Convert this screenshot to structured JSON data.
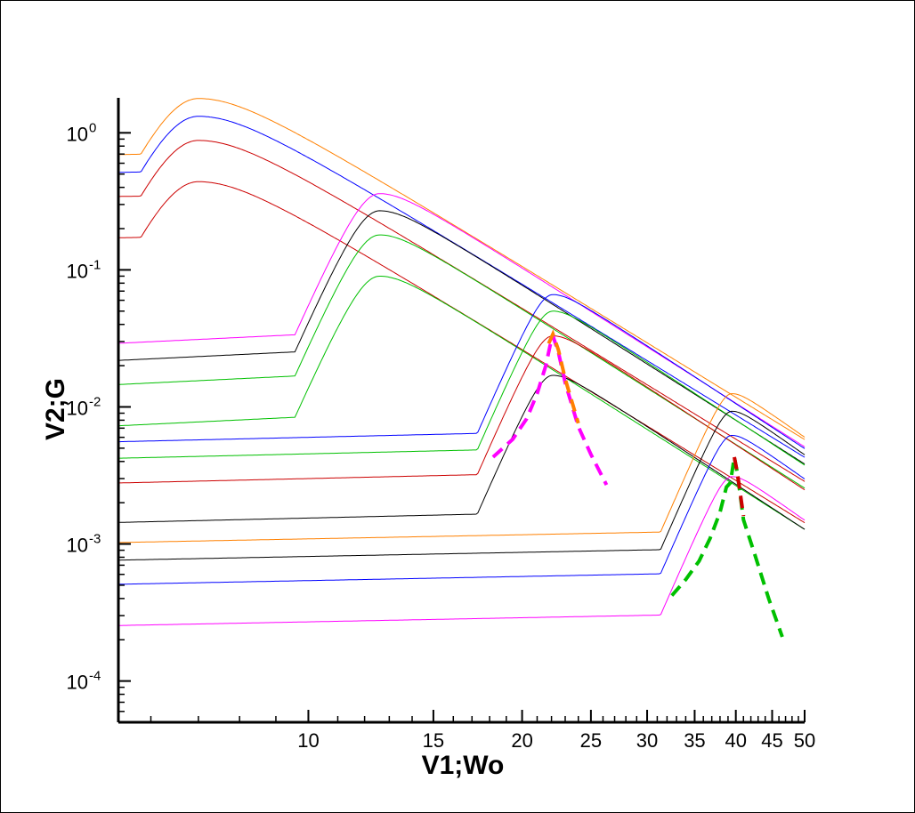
{
  "chart_data": {
    "type": "line",
    "title": "",
    "xlabel": "V1;Wo",
    "ylabel": "V2;G",
    "xscale": "log",
    "yscale": "log",
    "xlim": [
      5.4,
      50
    ],
    "ylim": [
      5e-05,
      1.8
    ],
    "grid": false,
    "legend": "none",
    "x_tick_labels": [
      "10",
      "15",
      "20",
      "25",
      "30",
      "35",
      "40",
      "45",
      "50"
    ],
    "y_ticks": [
      {
        "mantissa": "10",
        "exp": "0",
        "value": 1
      },
      {
        "mantissa": "10",
        "exp": "-1",
        "value": 0.1
      },
      {
        "mantissa": "10",
        "exp": "-2",
        "value": 0.01
      },
      {
        "mantissa": "10",
        "exp": "-3",
        "value": 0.001
      },
      {
        "mantissa": "10",
        "exp": "-4",
        "value": 0.0001
      }
    ],
    "resonance_families": [
      {
        "peak_x": 7,
        "width": 0.08,
        "tail_slope": -3.2,
        "left_slope": 0.08,
        "curves": [
          {
            "color": "#ff8000",
            "peak": 1.78
          },
          {
            "color": "#0000ff",
            "peak": 1.32
          },
          {
            "color": "#cc0000",
            "peak": 0.88
          },
          {
            "color": "#cc0000",
            "peak": 0.44
          }
        ]
      },
      {
        "peak_x": 12.6,
        "width": 0.04,
        "tail_slope": -3.3,
        "left_slope": 0.25,
        "curves": [
          {
            "color": "#ff00ff",
            "peak": 0.36
          },
          {
            "color": "#000000",
            "peak": 0.27
          },
          {
            "color": "#00c000",
            "peak": 0.18
          },
          {
            "color": "#00c000",
            "peak": 0.09
          }
        ]
      },
      {
        "peak_x": 22.1,
        "width": 0.025,
        "tail_slope": -3.4,
        "left_slope": 0.12,
        "curves": [
          {
            "color": "#0000ff",
            "peak": 0.066
          },
          {
            "color": "#00c000",
            "peak": 0.05
          },
          {
            "color": "#cc0000",
            "peak": 0.033
          },
          {
            "color": "#000000",
            "peak": 0.017
          }
        ]
      },
      {
        "peak_x": 39.5,
        "width": 0.018,
        "tail_slope": -3.7,
        "left_slope": 0.1,
        "curves": [
          {
            "color": "#ff8000",
            "peak": 0.0125
          },
          {
            "color": "#000000",
            "peak": 0.0093
          },
          {
            "color": "#0000ff",
            "peak": 0.0062
          },
          {
            "color": "#ff00ff",
            "peak": 0.0031
          }
        ]
      }
    ],
    "dashed_series": [
      {
        "name": "",
        "color": "#ff00ff",
        "style": "dashed",
        "x": [
          18.2,
          19.4,
          20.3,
          21.0,
          21.6,
          21.9,
          22.1,
          22.5,
          23.0,
          24.0,
          25.0,
          26.3
        ],
        "y": [
          0.0043,
          0.0058,
          0.0082,
          0.0125,
          0.02,
          0.028,
          0.033,
          0.025,
          0.015,
          0.0072,
          0.0045,
          0.0027
        ]
      },
      {
        "name": "",
        "color": "#ff8000",
        "style": "dashed",
        "x": [
          21.8,
          22.1,
          22.5,
          23.0,
          24.0
        ],
        "y": [
          0.029,
          0.034,
          0.026,
          0.016,
          0.0076
        ]
      },
      {
        "name": "",
        "color": "#00c000",
        "style": "dashed",
        "x": [
          32.5,
          34.0,
          35.5,
          36.8,
          38.0,
          38.8,
          39.3,
          39.8,
          40.2,
          41.0,
          42.5,
          44.5,
          46.5
        ],
        "y": [
          0.00042,
          0.00055,
          0.00075,
          0.0011,
          0.0017,
          0.0026,
          0.0028,
          0.0043,
          0.0033,
          0.0015,
          0.00085,
          0.0004,
          0.00021
        ]
      },
      {
        "name": "",
        "color": "#cc0000",
        "style": "dashed",
        "x": [
          39.8,
          40.2,
          41.0
        ],
        "y": [
          0.0043,
          0.0033,
          0.0016
        ]
      }
    ]
  }
}
